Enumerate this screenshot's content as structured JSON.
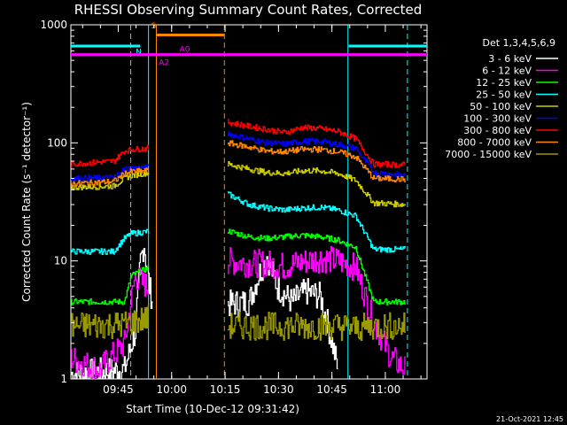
{
  "chart_data": {
    "type": "line",
    "title": "RHESSI Observing Summary Count Rates, Corrected",
    "xlabel": "Start Time (10-Dec-12 09:31:42)",
    "ylabel": "Corrected Count Rate (s⁻¹ detector⁻¹)",
    "y_scale": "log",
    "ylim": [
      1,
      1000
    ],
    "xlim_minutes": [
      0,
      100
    ],
    "x_ticks": [
      {
        "label": "09:45",
        "value": 13.3
      },
      {
        "label": "10:00",
        "value": 28.3
      },
      {
        "label": "10:15",
        "value": 43.3
      },
      {
        "label": "10:30",
        "value": 58.3
      },
      {
        "label": "10:45",
        "value": 73.3
      },
      {
        "label": "11:00",
        "value": 88.3
      }
    ],
    "y_ticks": [
      {
        "label": "1",
        "value": 1
      },
      {
        "label": "10",
        "value": 10
      },
      {
        "label": "100",
        "value": 100
      },
      {
        "label": "1000",
        "value": 1000
      }
    ],
    "legend_title": "Det 1,3,4,5,6,9",
    "legend_position": "right",
    "series": [
      {
        "name": "3 - 6 keV",
        "color": "#ffffff",
        "segments": [
          {
            "x": [
              0,
              15,
              18,
              19.5,
              20.5,
              22,
              23
            ],
            "y": [
              1.1,
              1.2,
              2.5,
              10,
              14,
              6,
              4.5
            ]
          },
          {
            "x": [
              44,
              50,
              53,
              55,
              58,
              62,
              66,
              70,
              72,
              75
            ],
            "y": [
              4.3,
              4.5,
              8,
              11,
              6,
              4.5,
              5.5,
              5,
              3,
              1.2
            ]
          }
        ]
      },
      {
        "name": "6 - 12 keV",
        "color": "#ff00ff",
        "segments": [
          {
            "x": [
              0,
              8,
              15,
              18,
              20,
              22
            ],
            "y": [
              1.5,
              1.2,
              2,
              7.5,
              6.5,
              6
            ]
          },
          {
            "x": [
              44,
              50,
              55,
              60,
              65,
              70,
              75,
              80,
              85,
              90,
              94
            ],
            "y": [
              10,
              9.5,
              9.5,
              9,
              9.8,
              10.5,
              10,
              8.8,
              3,
              1.5,
              1.2
            ]
          }
        ]
      },
      {
        "name": "12 - 25 keV",
        "color": "#00ff00",
        "segments": [
          {
            "x": [
              0,
              15,
              17,
              22
            ],
            "y": [
              4.5,
              4.5,
              7.5,
              8.8
            ]
          },
          {
            "x": [
              44,
              50,
              55,
              60,
              65,
              70,
              75,
              80,
              85,
              94
            ],
            "y": [
              18,
              16,
              15.5,
              16,
              16.5,
              16,
              15,
              13,
              4.5,
              4.5
            ]
          }
        ]
      },
      {
        "name": "25 - 50 keV",
        "color": "#00ffff",
        "segments": [
          {
            "x": [
              0,
              12,
              15,
              17,
              22
            ],
            "y": [
              12,
              12,
              15.5,
              17,
              17.8
            ]
          },
          {
            "x": [
              44,
              50,
              55,
              60,
              65,
              70,
              75,
              80,
              85,
              94
            ],
            "y": [
              37,
              30,
              28,
              27,
              28,
              28.5,
              27,
              24,
              12.5,
              12.5
            ]
          }
        ]
      },
      {
        "name": "50 - 100 keV",
        "color": "#cccc00",
        "segments": [
          {
            "x": [
              0,
              12,
              15,
              17,
              22
            ],
            "y": [
              42,
              43,
              50,
              53,
              56
            ]
          },
          {
            "x": [
              44,
              50,
              55,
              60,
              65,
              70,
              75,
              80,
              85,
              94
            ],
            "y": [
              66,
              60,
              56,
              55,
              58,
              58,
              55,
              48,
              31,
              30
            ]
          }
        ]
      },
      {
        "name": "100 - 300 keV",
        "color": "#0000ff",
        "segments": [
          {
            "x": [
              0,
              12,
              15,
              17,
              22
            ],
            "y": [
              50,
              51,
              60,
              61,
              62
            ]
          },
          {
            "x": [
              44,
              50,
              55,
              60,
              65,
              70,
              75,
              80,
              85,
              94
            ],
            "y": [
              120,
              108,
              100,
              98,
              103,
              103,
              97,
              90,
              56,
              53
            ]
          }
        ]
      },
      {
        "name": "300 - 800 keV",
        "color": "#ff0000",
        "segments": [
          {
            "x": [
              0,
              12,
              15,
              17,
              22
            ],
            "y": [
              66,
              70,
              85,
              88,
              90
            ]
          },
          {
            "x": [
              44,
              50,
              55,
              60,
              65,
              70,
              75,
              80,
              85,
              94
            ],
            "y": [
              150,
              138,
              130,
              122,
              135,
              132,
              125,
              108,
              66,
              65
            ]
          }
        ]
      },
      {
        "name": "800 - 7000 keV",
        "color": "#ff8800",
        "segments": [
          {
            "x": [
              0,
              12,
              15,
              17,
              22
            ],
            "y": [
              45,
              47,
              55,
              57,
              58
            ]
          },
          {
            "x": [
              44,
              50,
              55,
              60,
              65,
              70,
              75,
              80,
              85,
              94
            ],
            "y": [
              100,
              92,
              85,
              84,
              88,
              88,
              84,
              76,
              50,
              49
            ]
          }
        ]
      },
      {
        "name": "7000 - 15000 keV",
        "color": "#999900",
        "segments": [
          {
            "x": [
              0,
              15,
              22
            ],
            "y": [
              2.8,
              2.9,
              3.3
            ]
          },
          {
            "x": [
              44,
              60,
              75,
              80,
              85,
              94
            ],
            "y": [
              2.8,
              2.8,
              2.8,
              2.7,
              2.8,
              2.8
            ]
          }
        ]
      }
    ],
    "vlines": [
      {
        "x": 16.8,
        "color": "#00ffff",
        "style": "dashed"
      },
      {
        "x": 21.8,
        "color": "#00ffff",
        "style": "solid"
      },
      {
        "x": 77.8,
        "color": "#00ffff",
        "style": "solid"
      },
      {
        "x": 94.5,
        "color": "#00ffff",
        "style": "dashed"
      },
      {
        "x": 24.0,
        "color": "#ff8800",
        "style": "solid"
      },
      {
        "x": 43.1,
        "color": "#ff8800",
        "style": "dashed"
      }
    ],
    "top_bars": [
      {
        "x": [
          0,
          19.5
        ],
        "y": 660,
        "color": "#00ffff",
        "label": "N",
        "label_x": 18.2,
        "label_y": 560
      },
      {
        "x": [
          78,
          100
        ],
        "y": 660,
        "color": "#00ffff",
        "label": "",
        "label_x": null,
        "label_y": null
      },
      {
        "x": [
          24,
          43
        ],
        "y": 820,
        "color": "#ff8800",
        "label": "S",
        "label_x": 22.5,
        "label_y": 930
      },
      {
        "x": [
          0,
          100
        ],
        "y": 560,
        "color": "#ff00ff",
        "label": "A2",
        "label_x": 24.7,
        "label_y": 455
      },
      {
        "x": [
          0,
          0
        ],
        "y": 560,
        "color": "#ff00ff",
        "label": "A0",
        "label_x": 30.5,
        "label_y": 590
      }
    ]
  },
  "footer": {
    "date": "21-Oct-2021 12:45"
  }
}
